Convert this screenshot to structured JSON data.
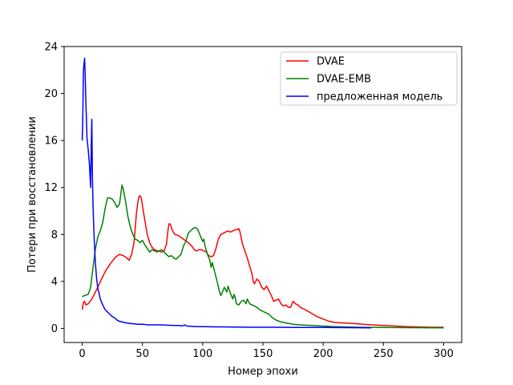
{
  "chart_data": {
    "type": "line",
    "title": "",
    "xlabel": "Номер эпохи",
    "ylabel": "Потери при восстановлении",
    "xlim": [
      -15,
      315
    ],
    "ylim": [
      -1.2,
      24
    ],
    "xticks": [
      0,
      50,
      100,
      150,
      200,
      250,
      300
    ],
    "yticks": [
      0,
      4,
      8,
      12,
      16,
      20,
      24
    ],
    "grid": false,
    "legend_position": "top-right",
    "series": [
      {
        "name": "DVAE",
        "color": "#ff0000",
        "points": [
          [
            0,
            1.6
          ],
          [
            1,
            2.2
          ],
          [
            2,
            2.3
          ],
          [
            3,
            2.0
          ],
          [
            5,
            2.1
          ],
          [
            8,
            2.5
          ],
          [
            12,
            3.3
          ],
          [
            16,
            4.2
          ],
          [
            20,
            5.0
          ],
          [
            24,
            5.6
          ],
          [
            28,
            6.1
          ],
          [
            31,
            6.3
          ],
          [
            34,
            6.2
          ],
          [
            37,
            6.0
          ],
          [
            39,
            5.8
          ],
          [
            41,
            6.3
          ],
          [
            43,
            7.3
          ],
          [
            44,
            8.5
          ],
          [
            45,
            9.8
          ],
          [
            46,
            10.6
          ],
          [
            47,
            11.2
          ],
          [
            48,
            11.3
          ],
          [
            49,
            11.1
          ],
          [
            50,
            10.5
          ],
          [
            51,
            9.8
          ],
          [
            52,
            9.2
          ],
          [
            54,
            8.0
          ],
          [
            56,
            7.3
          ],
          [
            58,
            6.9
          ],
          [
            60,
            6.7
          ],
          [
            63,
            6.6
          ],
          [
            66,
            6.5
          ],
          [
            68,
            6.6
          ],
          [
            70,
            7.2
          ],
          [
            71,
            8.2
          ],
          [
            72,
            8.9
          ],
          [
            73,
            8.9
          ],
          [
            74,
            8.6
          ],
          [
            75,
            8.3
          ],
          [
            77,
            8.0
          ],
          [
            80,
            7.9
          ],
          [
            84,
            7.6
          ],
          [
            88,
            7.3
          ],
          [
            91,
            7.0
          ],
          [
            93,
            6.7
          ],
          [
            95,
            6.6
          ],
          [
            97,
            6.7
          ],
          [
            99,
            6.7
          ],
          [
            101,
            6.6
          ],
          [
            103,
            6.5
          ],
          [
            105,
            6.2
          ],
          [
            107,
            6.1
          ],
          [
            109,
            6.2
          ],
          [
            111,
            6.8
          ],
          [
            113,
            7.6
          ],
          [
            115,
            8.0
          ],
          [
            117,
            8.1
          ],
          [
            119,
            8.2
          ],
          [
            121,
            8.3
          ],
          [
            123,
            8.2
          ],
          [
            125,
            8.3
          ],
          [
            127,
            8.4
          ],
          [
            129,
            8.4
          ],
          [
            130,
            8.5
          ],
          [
            131,
            8.2
          ],
          [
            133,
            7.2
          ],
          [
            135,
            6.6
          ],
          [
            137,
            6.0
          ],
          [
            139,
            5.3
          ],
          [
            141,
            4.6
          ],
          [
            142,
            4.0
          ],
          [
            143,
            3.8
          ],
          [
            145,
            4.2
          ],
          [
            147,
            4.0
          ],
          [
            149,
            3.5
          ],
          [
            151,
            3.3
          ],
          [
            153,
            3.6
          ],
          [
            155,
            3.2
          ],
          [
            157,
            2.8
          ],
          [
            159,
            2.3
          ],
          [
            161,
            2.4
          ],
          [
            163,
            2.5
          ],
          [
            165,
            2.1
          ],
          [
            167,
            1.9
          ],
          [
            169,
            2.0
          ],
          [
            171,
            1.8
          ],
          [
            173,
            1.8
          ],
          [
            175,
            2.3
          ],
          [
            177,
            2.1
          ],
          [
            179,
            2.0
          ],
          [
            181,
            1.8
          ],
          [
            185,
            1.6
          ],
          [
            190,
            1.3
          ],
          [
            195,
            1.0
          ],
          [
            200,
            0.8
          ],
          [
            205,
            0.6
          ],
          [
            210,
            0.5
          ],
          [
            220,
            0.45
          ],
          [
            230,
            0.38
          ],
          [
            240,
            0.3
          ],
          [
            250,
            0.25
          ],
          [
            260,
            0.2
          ],
          [
            270,
            0.15
          ],
          [
            280,
            0.12
          ],
          [
            290,
            0.1
          ],
          [
            300,
            0.1
          ]
        ]
      },
      {
        "name": "DVAE-EMB",
        "color": "#008000",
        "points": [
          [
            0,
            2.7
          ],
          [
            2,
            2.8
          ],
          [
            5,
            2.9
          ],
          [
            7,
            3.5
          ],
          [
            9,
            5.2
          ],
          [
            11,
            6.8
          ],
          [
            13,
            7.8
          ],
          [
            15,
            8.3
          ],
          [
            17,
            9.0
          ],
          [
            19,
            10.2
          ],
          [
            21,
            11.1
          ],
          [
            23,
            11.1
          ],
          [
            25,
            11.0
          ],
          [
            27,
            10.7
          ],
          [
            29,
            10.3
          ],
          [
            31,
            10.6
          ],
          [
            33,
            12.2
          ],
          [
            34,
            11.9
          ],
          [
            36,
            10.8
          ],
          [
            38,
            9.5
          ],
          [
            40,
            8.6
          ],
          [
            42,
            8.0
          ],
          [
            44,
            7.6
          ],
          [
            46,
            7.5
          ],
          [
            48,
            7.3
          ],
          [
            50,
            7.5
          ],
          [
            52,
            7.1
          ],
          [
            54,
            6.8
          ],
          [
            56,
            6.5
          ],
          [
            58,
            6.7
          ],
          [
            60,
            6.6
          ],
          [
            62,
            6.5
          ],
          [
            64,
            6.6
          ],
          [
            66,
            6.7
          ],
          [
            68,
            6.5
          ],
          [
            70,
            6.3
          ],
          [
            72,
            6.1
          ],
          [
            74,
            6.2
          ],
          [
            76,
            6.0
          ],
          [
            78,
            5.9
          ],
          [
            80,
            6.1
          ],
          [
            82,
            6.3
          ],
          [
            84,
            7.0
          ],
          [
            86,
            7.4
          ],
          [
            88,
            8.1
          ],
          [
            90,
            8.3
          ],
          [
            92,
            8.5
          ],
          [
            94,
            8.6
          ],
          [
            96,
            8.4
          ],
          [
            98,
            7.9
          ],
          [
            100,
            7.4
          ],
          [
            101,
            7.6
          ],
          [
            102,
            7.0
          ],
          [
            104,
            6.3
          ],
          [
            106,
            5.8
          ],
          [
            107,
            5.2
          ],
          [
            108,
            5.6
          ],
          [
            110,
            4.8
          ],
          [
            112,
            4.0
          ],
          [
            114,
            3.1
          ],
          [
            115,
            2.8
          ],
          [
            116,
            3.0
          ],
          [
            118,
            3.5
          ],
          [
            120,
            3.1
          ],
          [
            121,
            3.6
          ],
          [
            123,
            3.0
          ],
          [
            125,
            2.5
          ],
          [
            126,
            2.9
          ],
          [
            127,
            2.6
          ],
          [
            128,
            2.1
          ],
          [
            130,
            2.0
          ],
          [
            132,
            2.3
          ],
          [
            134,
            2.4
          ],
          [
            136,
            2.1
          ],
          [
            137,
            2.5
          ],
          [
            139,
            2.1
          ],
          [
            141,
            2.0
          ],
          [
            143,
            1.9
          ],
          [
            145,
            1.8
          ],
          [
            147,
            1.6
          ],
          [
            149,
            1.5
          ],
          [
            151,
            1.4
          ],
          [
            153,
            1.3
          ],
          [
            155,
            1.2
          ],
          [
            158,
            0.9
          ],
          [
            161,
            0.7
          ],
          [
            165,
            0.55
          ],
          [
            170,
            0.45
          ],
          [
            175,
            0.35
          ],
          [
            180,
            0.3
          ],
          [
            185,
            0.28
          ],
          [
            190,
            0.25
          ],
          [
            200,
            0.2
          ],
          [
            210,
            0.15
          ],
          [
            220,
            0.12
          ],
          [
            230,
            0.1
          ],
          [
            250,
            0.08
          ],
          [
            270,
            0.06
          ],
          [
            300,
            0.05
          ]
        ]
      },
      {
        "name": "предложенная модель",
        "color": "#0000ff",
        "points": [
          [
            0,
            16.0
          ],
          [
            0.5,
            18.0
          ],
          [
            1,
            21.9
          ],
          [
            1.5,
            22.5
          ],
          [
            2,
            23.0
          ],
          [
            2.5,
            21.5
          ],
          [
            3,
            19.5
          ],
          [
            4,
            16.2
          ],
          [
            5,
            15.2
          ],
          [
            6,
            14.0
          ],
          [
            7,
            12.0
          ],
          [
            7.5,
            15.5
          ],
          [
            8,
            17.8
          ],
          [
            8.5,
            13.0
          ],
          [
            9,
            10.4
          ],
          [
            10,
            7.5
          ],
          [
            11,
            5.5
          ],
          [
            12,
            4.2
          ],
          [
            13,
            3.4
          ],
          [
            14,
            3.0
          ],
          [
            15,
            2.5
          ],
          [
            17,
            2.0
          ],
          [
            19,
            1.6
          ],
          [
            21,
            1.4
          ],
          [
            23,
            1.2
          ],
          [
            25,
            1.0
          ],
          [
            27,
            0.9
          ],
          [
            29,
            0.7
          ],
          [
            31,
            0.6
          ],
          [
            33,
            0.55
          ],
          [
            35,
            0.5
          ],
          [
            38,
            0.45
          ],
          [
            42,
            0.4
          ],
          [
            46,
            0.35
          ],
          [
            50,
            0.35
          ],
          [
            55,
            0.3
          ],
          [
            60,
            0.3
          ],
          [
            65,
            0.3
          ],
          [
            70,
            0.28
          ],
          [
            75,
            0.25
          ],
          [
            80,
            0.25
          ],
          [
            83,
            0.2
          ],
          [
            85,
            0.3
          ],
          [
            87,
            0.2
          ],
          [
            90,
            0.18
          ],
          [
            95,
            0.15
          ],
          [
            100,
            0.15
          ],
          [
            110,
            0.13
          ],
          [
            120,
            0.12
          ],
          [
            140,
            0.1
          ],
          [
            160,
            0.1
          ],
          [
            180,
            0.08
          ],
          [
            200,
            0.08
          ],
          [
            220,
            0.06
          ],
          [
            240,
            0.05
          ]
        ]
      }
    ]
  }
}
